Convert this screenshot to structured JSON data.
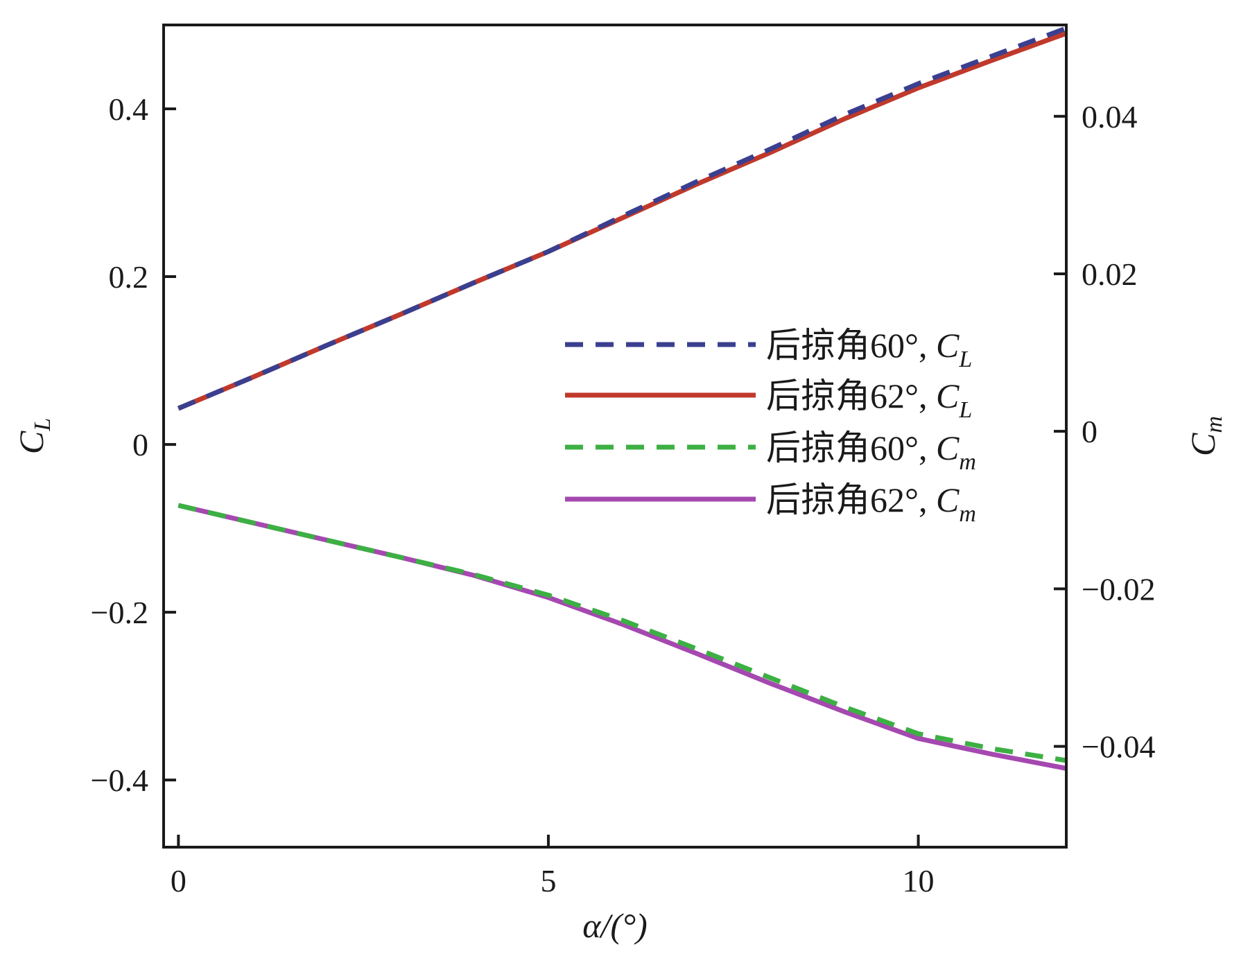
{
  "chart_data": {
    "type": "line",
    "xlabel": "α/(°)",
    "ylabel_left": {
      "main": "C",
      "sub": "L"
    },
    "ylabel_right": {
      "main": "C",
      "sub": "m"
    },
    "xlim": [
      -0.2,
      12
    ],
    "ylim_left": [
      -0.48,
      0.5
    ],
    "ylim_right": [
      -0.0528,
      0.0516
    ],
    "x_ticks": [
      0,
      5,
      10
    ],
    "x_tick_labels": [
      "0",
      "5",
      "10"
    ],
    "y_left_ticks": [
      -0.4,
      -0.2,
      0,
      0.2,
      0.4
    ],
    "y_left_tick_labels": [
      "−0.4",
      "−0.2",
      "0",
      "0.2",
      "0.4"
    ],
    "y_right_ticks": [
      -0.04,
      -0.02,
      0,
      0.02,
      0.04
    ],
    "y_right_tick_labels": [
      "−0.04",
      "−0.02",
      "0",
      "0.02",
      "0.04"
    ],
    "grid": false,
    "legend_position": "center-right",
    "series": [
      {
        "name": "后掠角60°, C_L",
        "label_main": "后掠角60°, C",
        "label_sub": "L",
        "axis": "left",
        "style": "dashed",
        "color": "#3a3f8f",
        "x": [
          0,
          1,
          2,
          3,
          4,
          5,
          6,
          7,
          8,
          9,
          10,
          11,
          12
        ],
        "y": [
          0.043,
          0.08,
          0.118,
          0.155,
          0.193,
          0.23,
          0.272,
          0.313,
          0.352,
          0.393,
          0.43,
          0.463,
          0.496
        ]
      },
      {
        "name": "后掠角62°, C_L",
        "label_main": "后掠角62°, C",
        "label_sub": "L",
        "axis": "left",
        "style": "solid",
        "color": "#c0392b",
        "x": [
          0,
          1,
          2,
          3,
          4,
          5,
          6,
          7,
          8,
          9,
          10,
          11,
          12
        ],
        "y": [
          0.043,
          0.08,
          0.118,
          0.155,
          0.193,
          0.23,
          0.27,
          0.31,
          0.348,
          0.388,
          0.425,
          0.458,
          0.49
        ]
      },
      {
        "name": "后掠角60°, C_m",
        "label_main": "后掠角60°, C",
        "label_sub": "m",
        "axis": "right",
        "style": "dashed",
        "color": "#3cb043",
        "x": [
          0,
          1,
          2,
          3,
          4,
          5,
          6,
          7,
          8,
          9,
          10,
          11,
          12
        ],
        "y": [
          -0.0094,
          -0.0116,
          -0.0138,
          -0.016,
          -0.0182,
          -0.0208,
          -0.024,
          -0.0276,
          -0.0313,
          -0.035,
          -0.0384,
          -0.0403,
          -0.0418
        ]
      },
      {
        "name": "后掠角62°, C_m",
        "label_main": "后掠角62°, C",
        "label_sub": "m",
        "axis": "right",
        "style": "solid",
        "color": "#a548b0",
        "x": [
          0,
          1,
          2,
          3,
          4,
          5,
          6,
          7,
          8,
          9,
          10,
          11,
          12
        ],
        "y": [
          -0.0094,
          -0.0116,
          -0.0138,
          -0.016,
          -0.0183,
          -0.0211,
          -0.0245,
          -0.0282,
          -0.032,
          -0.0356,
          -0.039,
          -0.041,
          -0.0428
        ]
      }
    ]
  }
}
